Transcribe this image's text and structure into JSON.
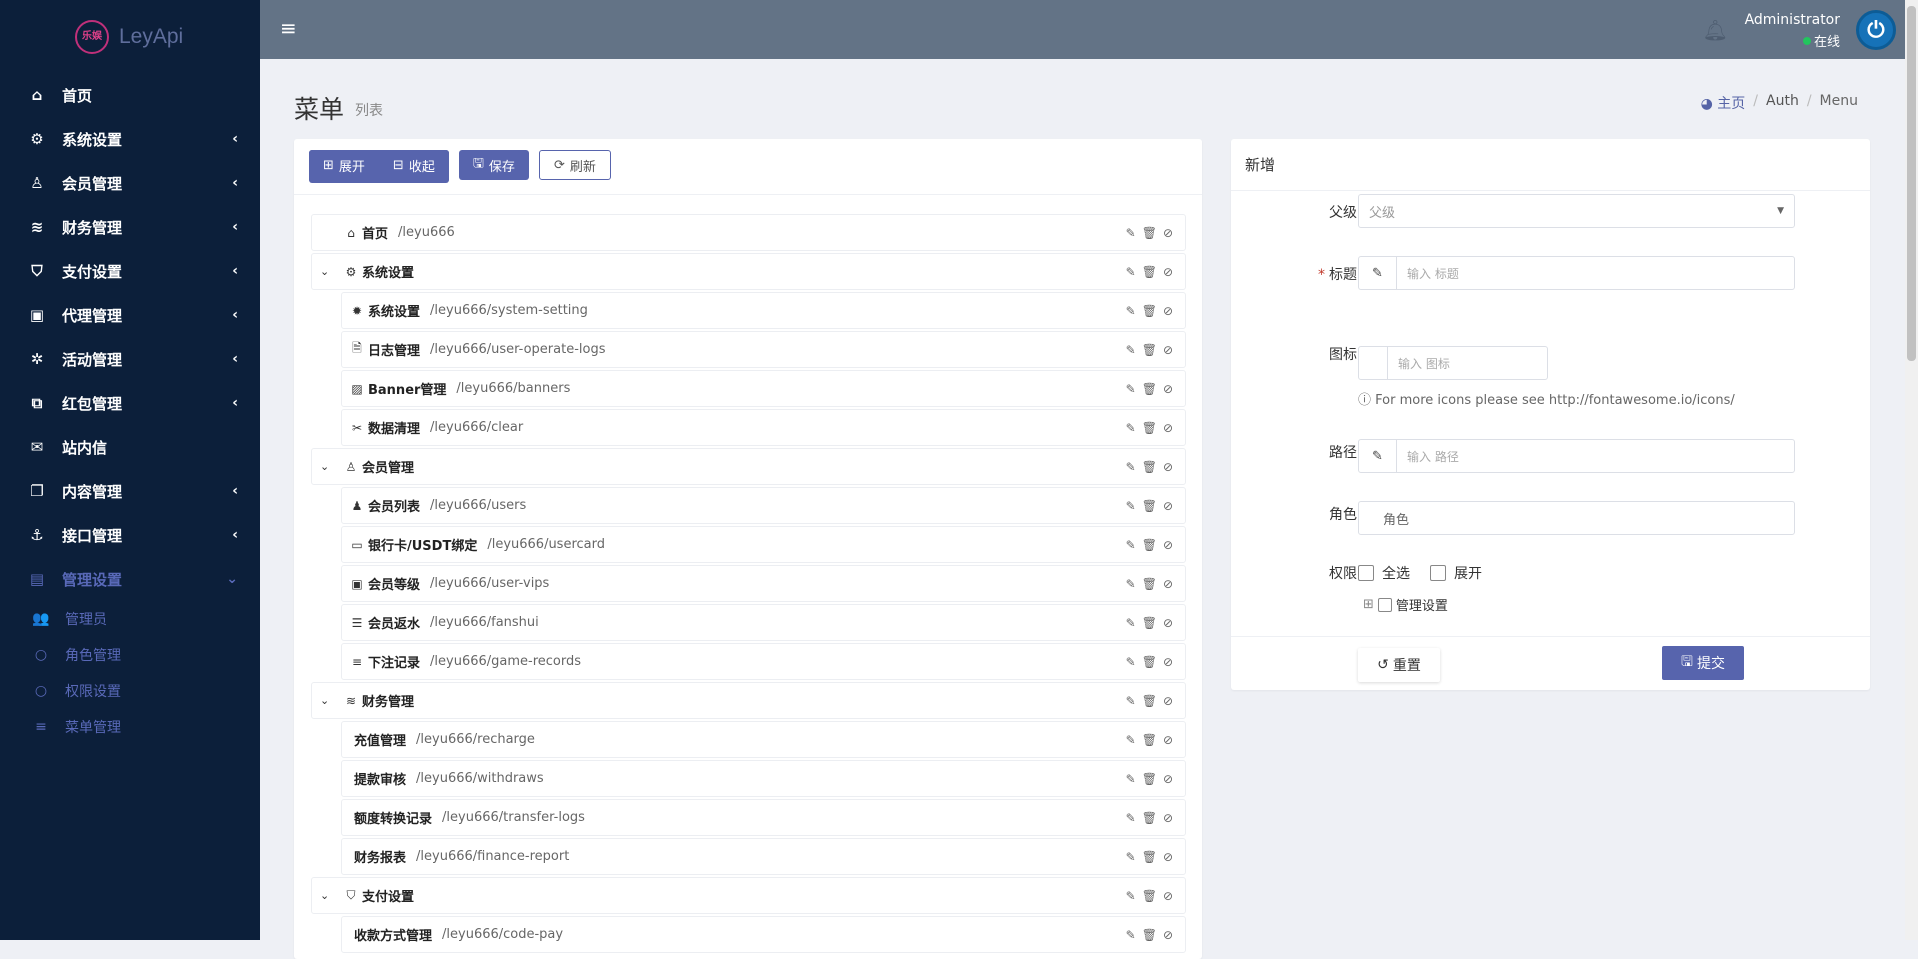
{
  "brand": {
    "name": "LeyApi",
    "logo_text": "乐娱 LEY"
  },
  "sidebar": {
    "items": [
      {
        "label": "首页",
        "icon": "home-icon",
        "glyph": "⌂",
        "expandable": false
      },
      {
        "label": "系统设置",
        "icon": "gears-icon",
        "glyph": "⚙",
        "expandable": true
      },
      {
        "label": "会员管理",
        "icon": "user-icon",
        "glyph": "♙",
        "expandable": true
      },
      {
        "label": "财务管理",
        "icon": "database-icon",
        "glyph": "≋",
        "expandable": true
      },
      {
        "label": "支付设置",
        "icon": "bookmark-icon",
        "glyph": "⛉",
        "expandable": true
      },
      {
        "label": "代理管理",
        "icon": "contact-card-icon",
        "glyph": "▣",
        "expandable": true
      },
      {
        "label": "活动管理",
        "icon": "pinwheel-icon",
        "glyph": "✲",
        "expandable": true
      },
      {
        "label": "红包管理",
        "icon": "clone-icon",
        "glyph": "⧉",
        "expandable": true
      },
      {
        "label": "站内信",
        "icon": "envelope-icon",
        "glyph": "✉",
        "expandable": false
      },
      {
        "label": "内容管理",
        "icon": "copy-icon",
        "glyph": "❐",
        "expandable": true
      },
      {
        "label": "接口管理",
        "icon": "anchor-icon",
        "glyph": "⚓",
        "expandable": true
      },
      {
        "label": "管理设置",
        "icon": "id-card-icon",
        "glyph": "▤",
        "expandable": true,
        "active": true
      }
    ],
    "subitems": [
      {
        "label": "管理员",
        "glyph": "👥",
        "icon": "users-icon"
      },
      {
        "label": "角色管理",
        "glyph": "○",
        "icon": "circle-icon"
      },
      {
        "label": "权限设置",
        "glyph": "○",
        "icon": "circle-icon"
      },
      {
        "label": "菜单管理",
        "glyph": "≡",
        "icon": "bars-icon"
      }
    ],
    "expand_chevron": "‹",
    "open_chevron": "⌄"
  },
  "header": {
    "user_name": "Administrator",
    "status": "在线",
    "status_color": "#22c55e"
  },
  "page": {
    "title": "菜单",
    "subtitle": "列表",
    "breadcrumb": [
      "主页",
      "Auth",
      "Menu"
    ]
  },
  "toolbar": {
    "expand": "展开",
    "collapse": "收起",
    "save": "保存",
    "refresh": "刷新"
  },
  "tree": [
    {
      "label": "首页",
      "path": "/leyu666",
      "glyph": "⌂",
      "level": 1,
      "caret": false
    },
    {
      "label": "系统设置",
      "path": "",
      "glyph": "⚙",
      "level": 1,
      "caret": true
    },
    {
      "label": "系统设置",
      "path": "/leyu666/system-setting",
      "glyph": "✹",
      "level": 2
    },
    {
      "label": "日志管理",
      "path": "/leyu666/user-operate-logs",
      "glyph": "🗎",
      "level": 2
    },
    {
      "label": "Banner管理",
      "path": "/leyu666/banners",
      "glyph": "▨",
      "level": 2
    },
    {
      "label": "数据清理",
      "path": "/leyu666/clear",
      "glyph": "✂",
      "level": 2
    },
    {
      "label": "会员管理",
      "path": "",
      "glyph": "♙",
      "level": 1,
      "caret": true
    },
    {
      "label": "会员列表",
      "path": "/leyu666/users",
      "glyph": "♟",
      "level": 2
    },
    {
      "label": "银行卡/USDT绑定",
      "path": "/leyu666/usercard",
      "glyph": "▭",
      "level": 2
    },
    {
      "label": "会员等级",
      "path": "/leyu666/user-vips",
      "glyph": "▣",
      "level": 2
    },
    {
      "label": "会员返水",
      "path": "/leyu666/fanshui",
      "glyph": "☰",
      "level": 2
    },
    {
      "label": "下注记录",
      "path": "/leyu666/game-records",
      "glyph": "≡",
      "level": 2
    },
    {
      "label": "财务管理",
      "path": "",
      "glyph": "≋",
      "level": 1,
      "caret": true
    },
    {
      "label": "充值管理",
      "path": "/leyu666/recharge",
      "glyph": "",
      "level": 2
    },
    {
      "label": "提款审核",
      "path": "/leyu666/withdraws",
      "glyph": "",
      "level": 2
    },
    {
      "label": "额度转换记录",
      "path": "/leyu666/transfer-logs",
      "glyph": "",
      "level": 2
    },
    {
      "label": "财务报表",
      "path": "/leyu666/finance-report",
      "glyph": "",
      "level": 2
    },
    {
      "label": "支付设置",
      "path": "",
      "glyph": "⛉",
      "level": 1,
      "caret": true
    },
    {
      "label": "收款方式管理",
      "path": "/leyu666/code-pay",
      "glyph": "",
      "level": 2
    }
  ],
  "form": {
    "title": "新增",
    "parent_label": "父级",
    "parent_placeholder": "父级",
    "title_label": "标题",
    "title_placeholder": "输入 标题",
    "icon_label": "图标",
    "icon_placeholder": "输入 图标",
    "icon_help": "For more icons please see http://fontawesome.io/icons/",
    "path_label": "路径",
    "path_placeholder": "输入 路径",
    "role_label": "角色",
    "role_placeholder": "角色",
    "perm_label": "权限",
    "select_all": "全选",
    "expand": "展开",
    "perm_tree_item": "管理设置",
    "reset": "重置",
    "submit": "提交"
  }
}
